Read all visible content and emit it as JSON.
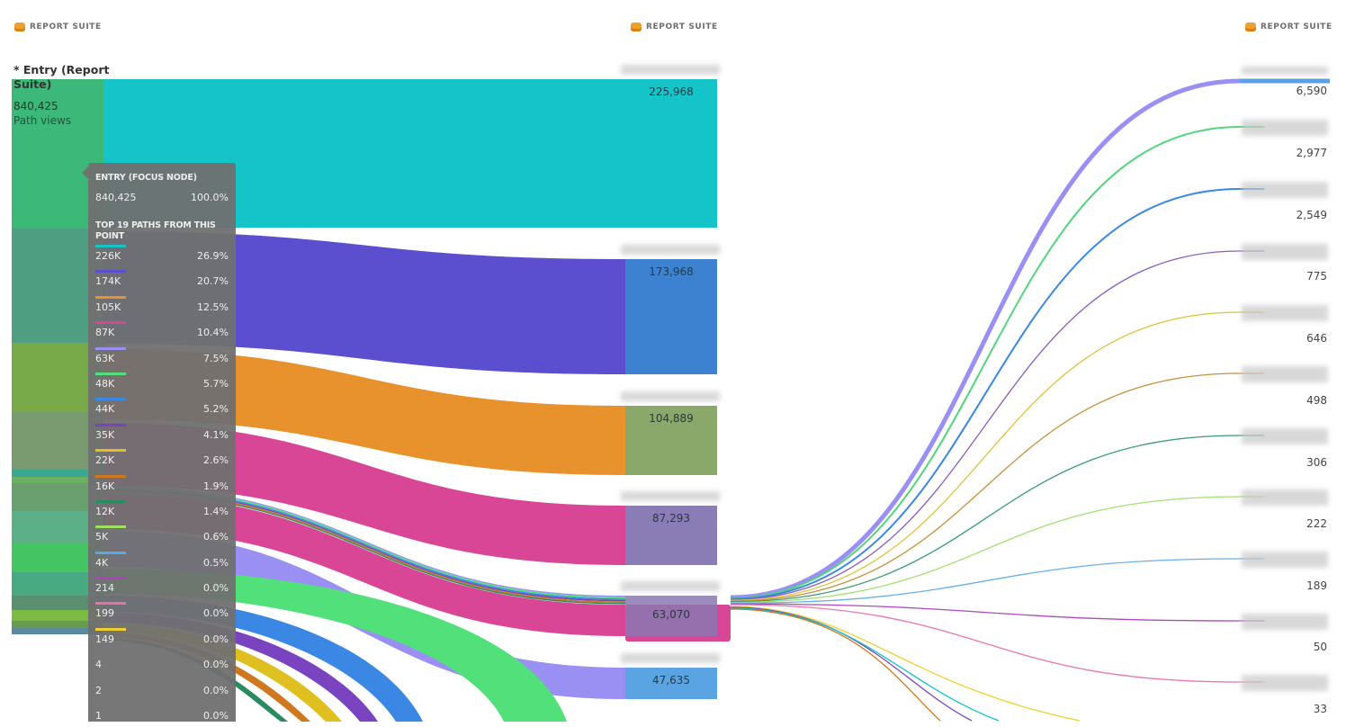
{
  "headers": [
    "REPORT SUITE",
    "REPORT SUITE",
    "REPORT SUITE"
  ],
  "entry": {
    "title": "* Entry (Report Suite)",
    "value": "840,425",
    "unit": "Path views"
  },
  "tooltip": {
    "title": "ENTRY (FOCUS NODE)",
    "value": "840,425",
    "pct": "100.0%",
    "paths_title": "TOP 19 PATHS FROM THIS POINT",
    "items": [
      {
        "value": "226K",
        "pct": "26.9%",
        "color": "#14c4c8"
      },
      {
        "value": "174K",
        "pct": "20.7%",
        "color": "#5b4fd0"
      },
      {
        "value": "105K",
        "pct": "12.5%",
        "color": "#e8922e"
      },
      {
        "value": "87K",
        "pct": "10.4%",
        "color": "#da4696"
      },
      {
        "value": "63K",
        "pct": "7.5%",
        "color": "#9a90f4"
      },
      {
        "value": "48K",
        "pct": "5.7%",
        "color": "#52e07a"
      },
      {
        "value": "44K",
        "pct": "5.2%",
        "color": "#3a88e4"
      },
      {
        "value": "35K",
        "pct": "4.1%",
        "color": "#7a44c0"
      },
      {
        "value": "22K",
        "pct": "2.6%",
        "color": "#e0c020"
      },
      {
        "value": "16K",
        "pct": "1.9%",
        "color": "#d07820"
      },
      {
        "value": "12K",
        "pct": "1.4%",
        "color": "#2a8a60"
      },
      {
        "value": "5K",
        "pct": "0.6%",
        "color": "#a0e060"
      },
      {
        "value": "4K",
        "pct": "0.5%",
        "color": "#5aa8e8"
      },
      {
        "value": "214",
        "pct": "0.0%",
        "color": "#b040c0"
      },
      {
        "value": "199",
        "pct": "0.0%",
        "color": "#e870a8"
      },
      {
        "value": "149",
        "pct": "0.0%",
        "color": "#f0d030"
      },
      {
        "value": "4",
        "pct": "0.0%",
        "color": ""
      },
      {
        "value": "2",
        "pct": "0.0%",
        "color": ""
      },
      {
        "value": "1",
        "pct": "0.0%",
        "color": ""
      }
    ]
  },
  "chart_data": {
    "type": "flow",
    "middle_nodes": [
      {
        "value": "225,968",
        "color": "#14c4c8"
      },
      {
        "value": "173,968",
        "color": "#3d82d0"
      },
      {
        "value": "104,889",
        "color": "#8aa86a"
      },
      {
        "value": "87,293",
        "color": "#8a7cb4"
      },
      {
        "value": "63,070",
        "color": "#8878b0"
      },
      {
        "value": "47,635",
        "color": "#5aa4e4"
      }
    ],
    "right_nodes": [
      {
        "value": "6,590",
        "color": "#9a90f4"
      },
      {
        "value": "2,977",
        "color": "#52d67a"
      },
      {
        "value": "2,549",
        "color": "#3a88e4"
      },
      {
        "value": "775",
        "color": "#8a5cc0"
      },
      {
        "value": "646",
        "color": "#e0c23c"
      },
      {
        "value": "498",
        "color": "#c8903c"
      },
      {
        "value": "306",
        "color": "#3a9a78"
      },
      {
        "value": "222",
        "color": "#a0e070"
      },
      {
        "value": "189",
        "color": "#6ab0e8"
      },
      {
        "value": "50",
        "color": "#b048c0"
      },
      {
        "value": "33",
        "color": "#e878b0"
      }
    ]
  }
}
